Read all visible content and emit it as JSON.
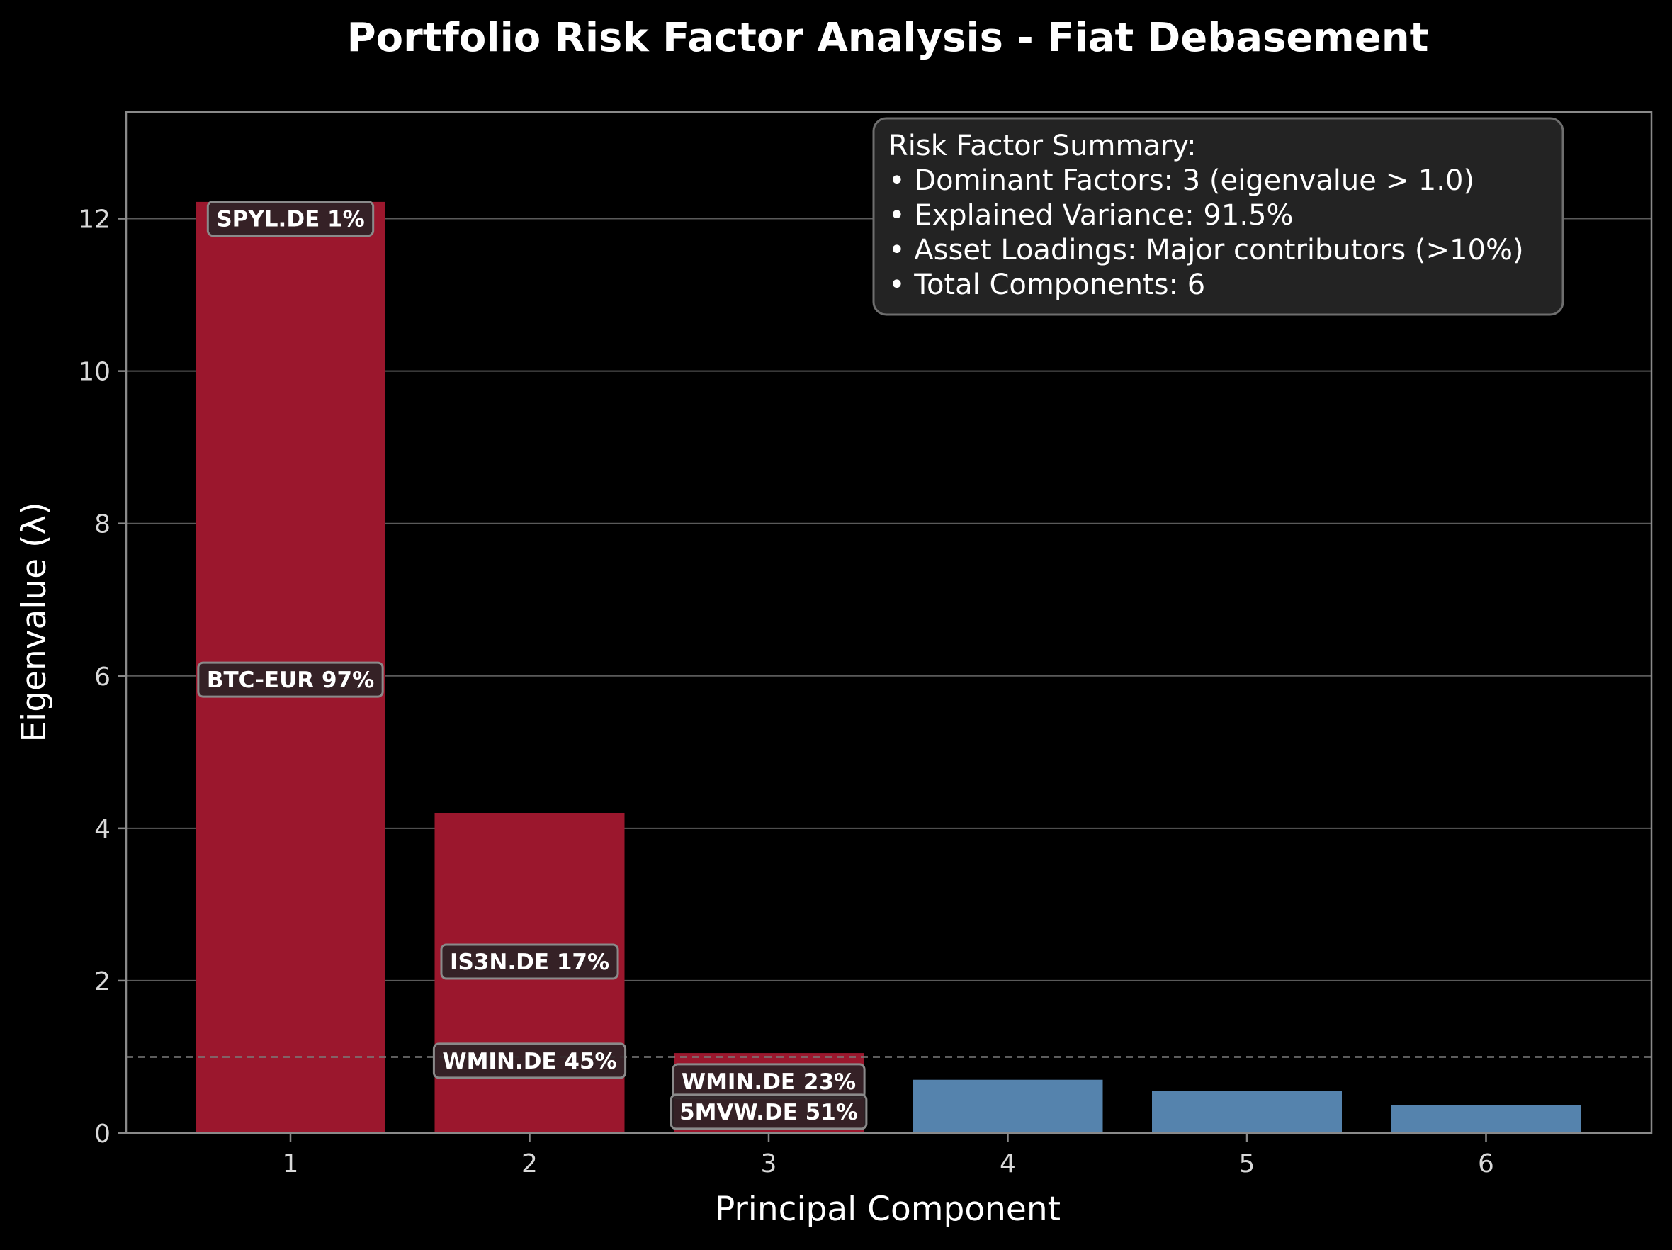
{
  "chart_data": {
    "type": "bar",
    "title": "Portfolio Risk Factor Analysis - Fiat Debasement",
    "xlabel": "Principal Component",
    "ylabel": "Eigenvalue (λ)",
    "categories": [
      "1",
      "2",
      "3",
      "4",
      "5",
      "6"
    ],
    "values": [
      12.22,
      4.2,
      1.05,
      0.7,
      0.55,
      0.37
    ],
    "ylim": [
      0,
      13.4
    ],
    "yticks": [
      "0",
      "2",
      "4",
      "6",
      "8",
      "10",
      "12"
    ],
    "threshold": 1.0,
    "grid": "horizontal",
    "colors": {
      "dominant": "#9b172d",
      "minor": "#5583ad",
      "background": "#000000",
      "grid": "#5a5a5a",
      "spine": "#8a8a8a",
      "annotation_box": "#2d2326",
      "annotation_border": "#8a8a8a",
      "summary_box": "#232323"
    },
    "annotations": [
      {
        "bar": 0,
        "y": 12.0,
        "text": "SPYL.DE 1%"
      },
      {
        "bar": 0,
        "y": 5.95,
        "text": "BTC-EUR 97%"
      },
      {
        "bar": 1,
        "y": 2.25,
        "text": "IS3N.DE 17%"
      },
      {
        "bar": 1,
        "y": 0.95,
        "text": "WMIN.DE 45%"
      },
      {
        "bar": 2,
        "y": 0.68,
        "text": "WMIN.DE 23%"
      },
      {
        "bar": 2,
        "y": 0.28,
        "text": "5MVW.DE 51%"
      }
    ],
    "summary": {
      "heading": "Risk Factor Summary:",
      "lines": [
        "• Dominant Factors: 3 (eigenvalue > 1.0)",
        "• Explained Variance: 91.5%",
        "• Asset Loadings: Major contributors (>10%)",
        "• Total Components: 6"
      ],
      "placement": "top-right"
    }
  }
}
